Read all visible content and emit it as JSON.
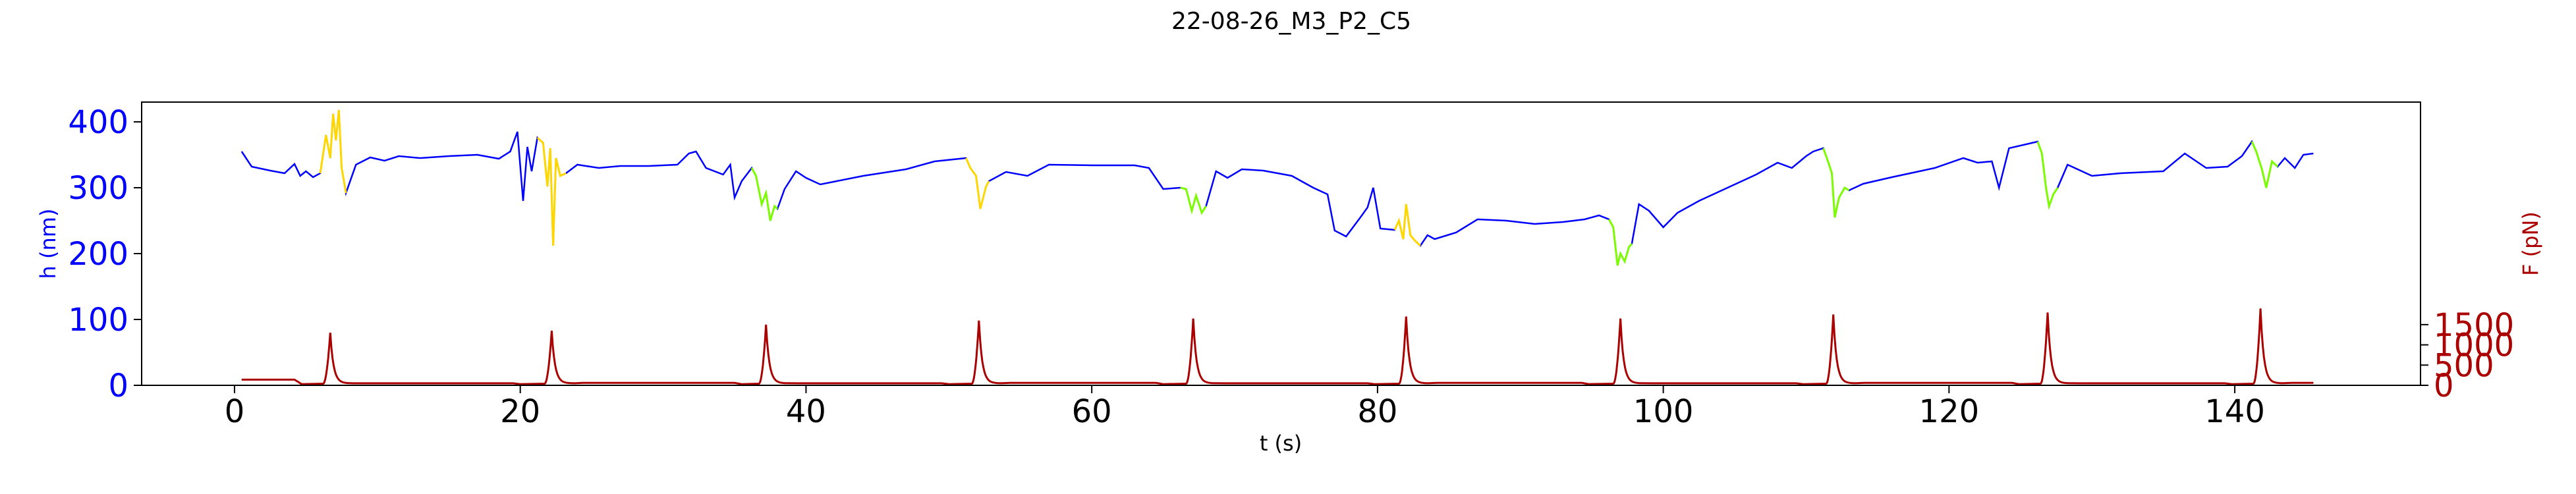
{
  "chart_data": {
    "type": "line",
    "title": "22-08-26_M3_P2_C5",
    "xlabel": "t (s)",
    "ylabel_left": "h (nm)",
    "ylabel_right": "F (pN)",
    "xlim": [
      -6.5,
      153
    ],
    "ylim_left": [
      0,
      430
    ],
    "ylim_right": [
      0,
      7000
    ],
    "x_ticks": [
      0,
      20,
      40,
      60,
      80,
      100,
      120,
      140
    ],
    "y_ticks_left": [
      0,
      100,
      200,
      300,
      400
    ],
    "y_ticks_right": [
      0,
      500,
      1000,
      1500
    ],
    "colors": {
      "height_base": "#0000ff",
      "height_yellow": "#ffd700",
      "height_green": "#7cfc00",
      "force": "#aa0000",
      "left_axis": "#0000ff",
      "right_axis": "#aa0000"
    },
    "height_segments": [
      {
        "color": "yellow",
        "range": [
          6.0,
          7.8
        ]
      },
      {
        "color": "yellow",
        "range": [
          21.2,
          23.2
        ]
      },
      {
        "color": "green",
        "range": [
          36.2,
          38.0
        ]
      },
      {
        "color": "yellow",
        "range": [
          51.2,
          52.8
        ]
      },
      {
        "color": "green",
        "range": [
          66.2,
          68.0
        ]
      },
      {
        "color": "yellow",
        "range": [
          81.2,
          83.0
        ]
      },
      {
        "color": "green",
        "range": [
          96.2,
          97.8
        ]
      },
      {
        "color": "green",
        "range": [
          111.2,
          113.0
        ]
      },
      {
        "color": "green",
        "range": [
          126.2,
          127.6
        ]
      },
      {
        "color": "green",
        "range": [
          141.2,
          143.0
        ]
      }
    ],
    "height_series": {
      "name": "h",
      "points": [
        [
          0.5,
          355
        ],
        [
          1.2,
          332
        ],
        [
          2.5,
          326
        ],
        [
          3.5,
          322
        ],
        [
          4.2,
          336
        ],
        [
          4.6,
          318
        ],
        [
          5.0,
          325
        ],
        [
          5.5,
          316
        ],
        [
          6.0,
          322
        ],
        [
          6.4,
          380
        ],
        [
          6.7,
          345
        ],
        [
          6.9,
          412
        ],
        [
          7.1,
          372
        ],
        [
          7.3,
          418
        ],
        [
          7.5,
          330
        ],
        [
          7.8,
          292
        ],
        [
          8.5,
          335
        ],
        [
          9.5,
          346
        ],
        [
          10.5,
          341
        ],
        [
          11.5,
          348
        ],
        [
          13,
          345
        ],
        [
          15,
          348
        ],
        [
          17,
          350
        ],
        [
          18.5,
          344
        ],
        [
          19.3,
          355
        ],
        [
          19.8,
          385
        ],
        [
          20.2,
          280
        ],
        [
          20.5,
          362
        ],
        [
          20.8,
          325
        ],
        [
          21.2,
          376
        ],
        [
          21.6,
          368
        ],
        [
          21.9,
          302
        ],
        [
          22.1,
          360
        ],
        [
          22.3,
          212
        ],
        [
          22.5,
          345
        ],
        [
          22.8,
          318
        ],
        [
          23.2,
          322
        ],
        [
          24,
          335
        ],
        [
          25.5,
          330
        ],
        [
          27,
          333
        ],
        [
          29,
          333
        ],
        [
          31,
          335
        ],
        [
          31.8,
          352
        ],
        [
          32.3,
          355
        ],
        [
          33,
          330
        ],
        [
          34.2,
          320
        ],
        [
          34.7,
          335
        ],
        [
          35,
          285
        ],
        [
          35.5,
          310
        ],
        [
          36.2,
          330
        ],
        [
          36.5,
          318
        ],
        [
          36.9,
          275
        ],
        [
          37.2,
          292
        ],
        [
          37.5,
          250
        ],
        [
          37.8,
          272
        ],
        [
          38.0,
          268
        ],
        [
          38.5,
          298
        ],
        [
          39.3,
          325
        ],
        [
          40,
          315
        ],
        [
          41,
          305
        ],
        [
          44,
          318
        ],
        [
          47,
          328
        ],
        [
          49,
          340
        ],
        [
          51.2,
          345
        ],
        [
          51.5,
          330
        ],
        [
          51.9,
          318
        ],
        [
          52.2,
          268
        ],
        [
          52.6,
          302
        ],
        [
          52.8,
          310
        ],
        [
          54,
          324
        ],
        [
          55.5,
          318
        ],
        [
          57,
          335
        ],
        [
          60,
          334
        ],
        [
          63,
          334
        ],
        [
          64,
          330
        ],
        [
          65,
          298
        ],
        [
          66.2,
          300
        ],
        [
          66.6,
          298
        ],
        [
          67,
          265
        ],
        [
          67.3,
          288
        ],
        [
          67.7,
          262
        ],
        [
          68.0,
          272
        ],
        [
          68.7,
          325
        ],
        [
          69.5,
          315
        ],
        [
          70.5,
          328
        ],
        [
          72,
          326
        ],
        [
          74,
          318
        ],
        [
          75.5,
          300
        ],
        [
          76.5,
          290
        ],
        [
          77,
          235
        ],
        [
          77.8,
          226
        ],
        [
          78.8,
          255
        ],
        [
          79.3,
          270
        ],
        [
          79.7,
          300
        ],
        [
          80.2,
          238
        ],
        [
          81.2,
          236
        ],
        [
          81.5,
          250
        ],
        [
          81.8,
          222
        ],
        [
          82.0,
          275
        ],
        [
          82.3,
          228
        ],
        [
          82.6,
          220
        ],
        [
          83.0,
          212
        ],
        [
          83.5,
          228
        ],
        [
          84,
          222
        ],
        [
          85.5,
          232
        ],
        [
          87,
          252
        ],
        [
          89,
          250
        ],
        [
          91,
          245
        ],
        [
          93,
          248
        ],
        [
          94.5,
          252
        ],
        [
          95.5,
          258
        ],
        [
          96.2,
          252
        ],
        [
          96.5,
          240
        ],
        [
          96.8,
          182
        ],
        [
          97.0,
          200
        ],
        [
          97.3,
          188
        ],
        [
          97.6,
          210
        ],
        [
          97.8,
          215
        ],
        [
          98.3,
          275
        ],
        [
          99,
          265
        ],
        [
          100,
          240
        ],
        [
          101,
          262
        ],
        [
          102.5,
          280
        ],
        [
          104.5,
          300
        ],
        [
          106.5,
          320
        ],
        [
          108,
          338
        ],
        [
          109,
          330
        ],
        [
          110,
          348
        ],
        [
          110.5,
          355
        ],
        [
          111.2,
          360
        ],
        [
          111.5,
          342
        ],
        [
          111.8,
          322
        ],
        [
          112.0,
          255
        ],
        [
          112.3,
          285
        ],
        [
          112.7,
          300
        ],
        [
          113.0,
          296
        ],
        [
          114,
          306
        ],
        [
          116,
          316
        ],
        [
          119,
          330
        ],
        [
          121,
          345
        ],
        [
          122,
          338
        ],
        [
          123,
          340
        ],
        [
          123.5,
          300
        ],
        [
          124.2,
          360
        ],
        [
          126.2,
          370
        ],
        [
          126.5,
          352
        ],
        [
          126.8,
          298
        ],
        [
          127.0,
          272
        ],
        [
          127.3,
          290
        ],
        [
          127.6,
          300
        ],
        [
          128.3,
          335
        ],
        [
          130,
          318
        ],
        [
          132,
          322
        ],
        [
          135,
          325
        ],
        [
          136.5,
          352
        ],
        [
          138,
          330
        ],
        [
          139.5,
          332
        ],
        [
          140.5,
          348
        ],
        [
          141.2,
          370
        ],
        [
          141.5,
          355
        ],
        [
          141.9,
          328
        ],
        [
          142.2,
          300
        ],
        [
          142.6,
          340
        ],
        [
          143.0,
          332
        ],
        [
          143.5,
          345
        ],
        [
          144.2,
          330
        ],
        [
          144.8,
          350
        ],
        [
          145.5,
          352
        ]
      ]
    },
    "force_series": {
      "name": "F",
      "baseline_before": 140,
      "baseline_after": 50,
      "peaks": [
        {
          "t": 6.7,
          "peak": 1300,
          "start": 4.2
        },
        {
          "t": 22.2,
          "peak": 1350,
          "start": 19.5
        },
        {
          "t": 37.2,
          "peak": 1500,
          "start": 35.0
        },
        {
          "t": 52.1,
          "peak": 1600,
          "start": 49.5
        },
        {
          "t": 67.1,
          "peak": 1650,
          "start": 64.5
        },
        {
          "t": 82.0,
          "peak": 1700,
          "start": 79.3
        },
        {
          "t": 97.0,
          "peak": 1650,
          "start": 94.3
        },
        {
          "t": 111.9,
          "peak": 1750,
          "start": 109.3
        },
        {
          "t": 126.9,
          "peak": 1800,
          "start": 124.4
        },
        {
          "t": 141.8,
          "peak": 1900,
          "start": 139.3
        }
      ],
      "end_t": 145.5
    }
  }
}
